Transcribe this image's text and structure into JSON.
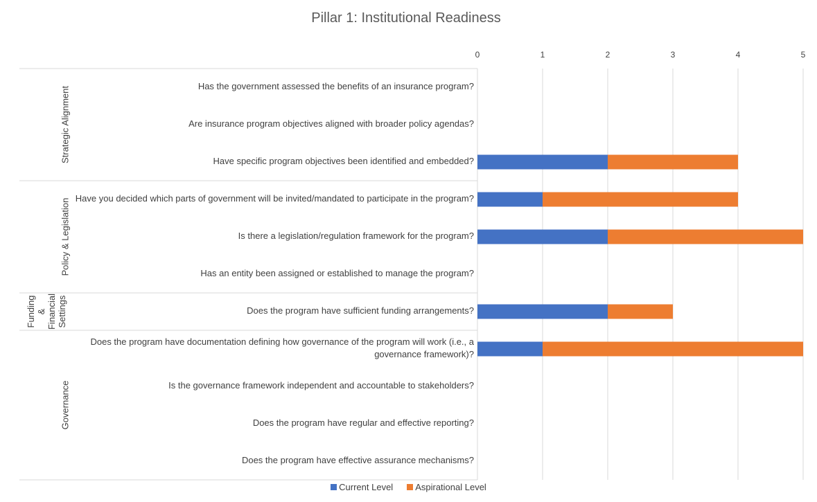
{
  "chart_data": {
    "type": "bar",
    "orientation": "horizontal",
    "stacked": true,
    "title": "Pillar 1: Institutional Readiness",
    "xlim": [
      0,
      5
    ],
    "x_ticks": [
      "0",
      "1",
      "2",
      "3",
      "4",
      "5"
    ],
    "grid": true,
    "legend_position": "bottom",
    "groups": [
      {
        "name": "Strategic Alignment",
        "count": 3
      },
      {
        "name": "Policy & Legislation",
        "count": 3
      },
      {
        "name": "Funding & Financial Settings",
        "lines": [
          "Funding",
          "&",
          "Financial",
          "Settings"
        ],
        "count": 1
      },
      {
        "name": "Governance",
        "count": 4
      }
    ],
    "categories": [
      "Has the government assessed the benefits of an insurance program?",
      "Are insurance program objectives aligned with broader policy agendas?",
      "Have specific program objectives been identified and embedded?",
      "Have you decided which parts of government will be invited/mandated to participate in the program?",
      "Is there a legislation/regulation framework for the program?",
      "Has an entity been assigned or established to manage the program?",
      "Does the program have sufficient funding arrangements?",
      "Does the program have documentation defining how governance of the program will work (i.e., a governance framework)?",
      "Is the governance framework independent and accountable to stakeholders?",
      "Does the program have regular and effective reporting?",
      "Does the program have effective assurance mechanisms?"
    ],
    "series": [
      {
        "name": "Current Level",
        "color": "#4472C4",
        "values": [
          0,
          0,
          2,
          1,
          2,
          0,
          2,
          1,
          0,
          0,
          0
        ]
      },
      {
        "name": "Aspirational Level",
        "color": "#ED7D31",
        "values": [
          0,
          0,
          2,
          3,
          3,
          0,
          1,
          4,
          0,
          0,
          0
        ]
      }
    ]
  }
}
